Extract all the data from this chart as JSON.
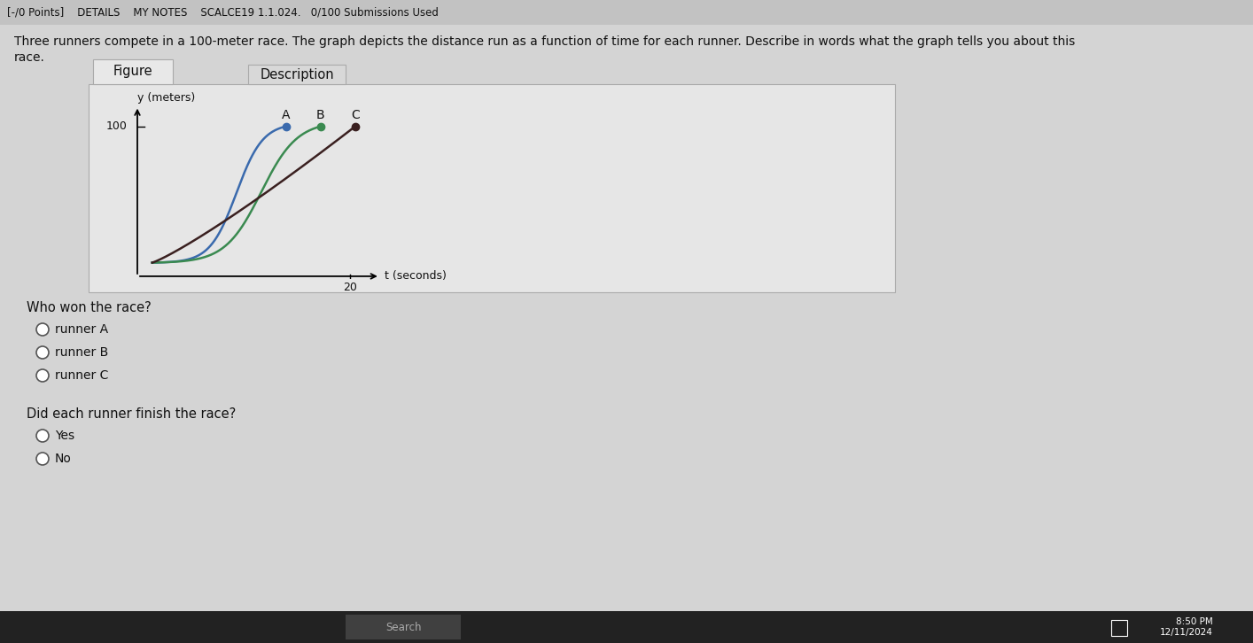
{
  "header_text": "[-/0 Points]    DETAILS    MY NOTES    SCALCE19 1.1.024.   0/100 Submissions Used",
  "question_text": "Three runners compete in a 100-meter race. The graph depicts the distance run as a function of time for each runner. Describe in words what the graph tells you about this\nrace.",
  "fig_tab": "Figure",
  "desc_tab": "Description",
  "ylabel": "y (meters)",
  "xlabel": "t (seconds)",
  "runner_A_color": "#3a6aad",
  "runner_B_color": "#3a8a50",
  "runner_C_color": "#3a2020",
  "runner_A_label": "A",
  "runner_B_label": "B",
  "runner_C_label": "C",
  "who_won_text": "Who won the race?",
  "option_runner_A": "runner A",
  "option_runner_B": "runner B",
  "option_runner_C": "runner C",
  "finish_text": "Did each runner finish the race?",
  "option_yes": "Yes",
  "option_no": "No",
  "bg_color": "#d4d4d4",
  "panel_bg": "#e6e6e6",
  "header_bg": "#c2c2c2",
  "tab_active_bg": "#e8e8e8",
  "tab_desc_bg": "#d8d8d8",
  "taskbar_color": "#222222",
  "time_text": "8:50 PM\n12/11/2024"
}
